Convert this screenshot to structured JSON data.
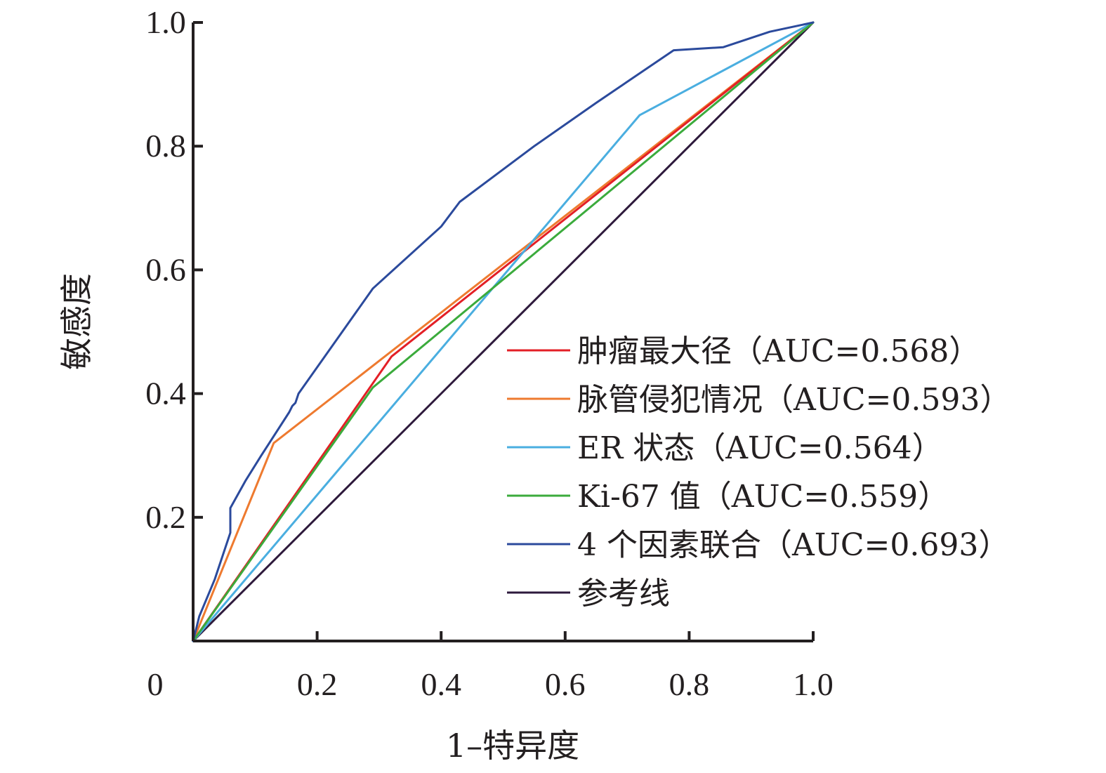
{
  "chart_data": {
    "type": "line",
    "title": "",
    "xlabel": "1–特异度",
    "ylabel": "敏感度",
    "xlim": [
      0,
      1
    ],
    "ylim": [
      0,
      1
    ],
    "x_ticks": [
      0.2,
      0.4,
      0.6,
      0.8,
      1.0
    ],
    "x_tick_labels": [
      "0.2",
      "0.4",
      "0.6",
      "0.8",
      "1.0"
    ],
    "y_ticks": [
      0.2,
      0.4,
      0.6,
      0.8,
      1.0
    ],
    "y_tick_labels": [
      "0.2",
      "0.4",
      "0.6",
      "0.8",
      "1.0"
    ],
    "origin_label": "0",
    "grid": false,
    "legend_position": "lower-right",
    "series": [
      {
        "name": "肿瘤最大径（AUC=0.568）",
        "color": "#e31f26",
        "points": [
          [
            0,
            0
          ],
          [
            0.32,
            0.46
          ],
          [
            1,
            1
          ]
        ]
      },
      {
        "name": "脉管侵犯情况（AUC=0.593）",
        "color": "#ee7a2f",
        "points": [
          [
            0,
            0
          ],
          [
            0.13,
            0.32
          ],
          [
            1,
            1
          ]
        ]
      },
      {
        "name": "ER 状态（AUC=0.564）",
        "color": "#4aaee0",
        "points": [
          [
            0,
            0
          ],
          [
            0.72,
            0.85
          ],
          [
            1,
            1
          ]
        ]
      },
      {
        "name": "Ki-67 值（AUC=0.559）",
        "color": "#3bab3c",
        "points": [
          [
            0,
            0
          ],
          [
            0.29,
            0.41
          ],
          [
            1,
            1
          ]
        ]
      },
      {
        "name": "4 个因素联合（AUC=0.693）",
        "color": "#2b4a9c",
        "points": [
          [
            0,
            0
          ],
          [
            0.01,
            0.04
          ],
          [
            0.035,
            0.1
          ],
          [
            0.06,
            0.175
          ],
          [
            0.06,
            0.215
          ],
          [
            0.085,
            0.26
          ],
          [
            0.11,
            0.3
          ],
          [
            0.155,
            0.37
          ],
          [
            0.16,
            0.38
          ],
          [
            0.165,
            0.385
          ],
          [
            0.17,
            0.4
          ],
          [
            0.29,
            0.57
          ],
          [
            0.4,
            0.67
          ],
          [
            0.43,
            0.71
          ],
          [
            0.55,
            0.8
          ],
          [
            0.65,
            0.87
          ],
          [
            0.775,
            0.955
          ],
          [
            0.855,
            0.96
          ],
          [
            0.93,
            0.985
          ],
          [
            1,
            1
          ]
        ]
      },
      {
        "name": "参考线",
        "color": "#2e1a3c",
        "points": [
          [
            0,
            0
          ],
          [
            1,
            1
          ]
        ]
      }
    ]
  }
}
